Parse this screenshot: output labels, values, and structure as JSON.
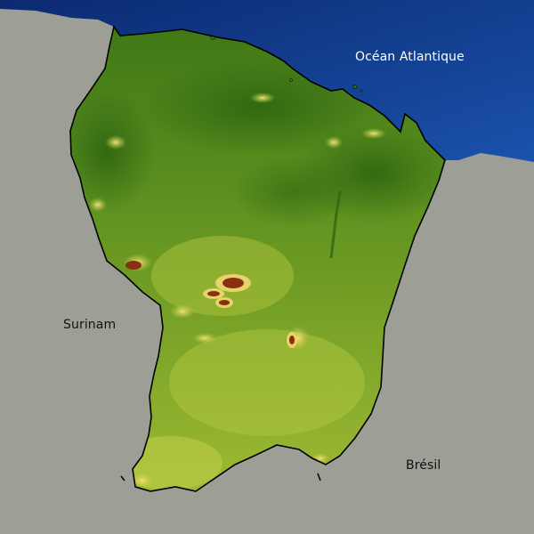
{
  "labels": {
    "ocean": "Océan Atlantique",
    "west": "Surinam",
    "east": "Brésil"
  },
  "colors": {
    "land_neighbors": "#9d9f96",
    "ocean_shallow": "#1a4da6",
    "ocean_deep": "#0b2a72",
    "lowland": "#3f7a18",
    "midland": "#7aa22a",
    "upland": "#b3c43e",
    "highland": "#e0d86a",
    "peak": "#8a2f10",
    "border": "#000000"
  }
}
